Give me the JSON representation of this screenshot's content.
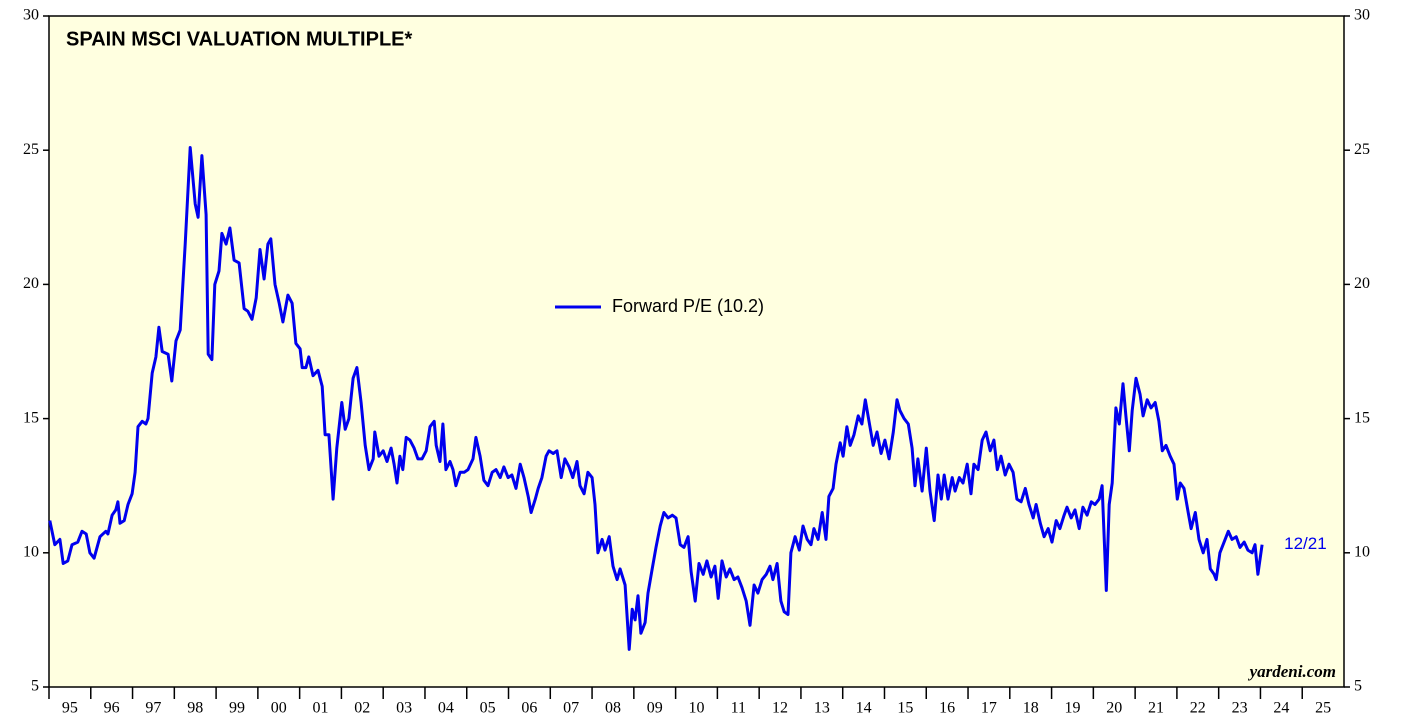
{
  "chart_data": {
    "type": "line",
    "title": "SPAIN MSCI VALUATION MULTIPLE*",
    "annotations": [
      "12/21",
      "yardeni.com"
    ],
    "xlim": [
      1995,
      2026
    ],
    "xticks": [
      {
        "value": 1995,
        "label": "95"
      },
      {
        "value": 1996,
        "label": "96"
      },
      {
        "value": 1997,
        "label": "97"
      },
      {
        "value": 1998,
        "label": "98"
      },
      {
        "value": 1999,
        "label": "99"
      },
      {
        "value": 2000,
        "label": "00"
      },
      {
        "value": 2001,
        "label": "01"
      },
      {
        "value": 2002,
        "label": "02"
      },
      {
        "value": 2003,
        "label": "03"
      },
      {
        "value": 2004,
        "label": "04"
      },
      {
        "value": 2005,
        "label": "05"
      },
      {
        "value": 2006,
        "label": "06"
      },
      {
        "value": 2007,
        "label": "07"
      },
      {
        "value": 2008,
        "label": "08"
      },
      {
        "value": 2009,
        "label": "09"
      },
      {
        "value": 2010,
        "label": "10"
      },
      {
        "value": 2011,
        "label": "11"
      },
      {
        "value": 2012,
        "label": "12"
      },
      {
        "value": 2013,
        "label": "13"
      },
      {
        "value": 2014,
        "label": "14"
      },
      {
        "value": 2015,
        "label": "15"
      },
      {
        "value": 2016,
        "label": "16"
      },
      {
        "value": 2017,
        "label": "17"
      },
      {
        "value": 2018,
        "label": "18"
      },
      {
        "value": 2019,
        "label": "19"
      },
      {
        "value": 2020,
        "label": "20"
      },
      {
        "value": 2021,
        "label": "21"
      },
      {
        "value": 2022,
        "label": "22"
      },
      {
        "value": 2023,
        "label": "23"
      },
      {
        "value": 2024,
        "label": "24"
      },
      {
        "value": 2025,
        "label": "25"
      }
    ],
    "ylim": [
      5,
      30
    ],
    "yticks": [
      5,
      10,
      15,
      20,
      25,
      30
    ],
    "legend": "center",
    "x": [
      1995.02,
      1995.14,
      1995.26,
      1995.34,
      1995.45,
      1995.55,
      1995.69,
      1995.79,
      1995.89,
      1995.98,
      1996.08,
      1996.22,
      1996.36,
      1996.41,
      1996.51,
      1996.6,
      1996.65,
      1996.7,
      1996.8,
      1996.89,
      1996.99,
      1997.06,
      1997.13,
      1997.23,
      1997.32,
      1997.37,
      1997.47,
      1997.56,
      1997.63,
      1997.71,
      1997.85,
      1997.94,
      1998.04,
      1998.14,
      1998.26,
      1998.38,
      1998.5,
      1998.57,
      1998.66,
      1998.76,
      1998.81,
      1998.9,
      1998.97,
      1999.07,
      1999.14,
      1999.24,
      1999.33,
      1999.43,
      1999.55,
      1999.67,
      1999.76,
      1999.86,
      1999.96,
      2000.05,
      2000.15,
      2000.24,
      2000.31,
      2000.41,
      2000.51,
      2000.6,
      2000.72,
      2000.82,
      2000.91,
      2001.01,
      2001.06,
      2001.15,
      2001.22,
      2001.32,
      2001.44,
      2001.54,
      2001.61,
      2001.7,
      2001.8,
      2001.89,
      2002.01,
      2002.09,
      2002.18,
      2002.28,
      2002.37,
      2002.47,
      2002.57,
      2002.66,
      2002.76,
      2002.8,
      2002.9,
      2003.0,
      2003.09,
      2003.19,
      2003.26,
      2003.33,
      2003.4,
      2003.47,
      2003.55,
      2003.64,
      2003.74,
      2003.83,
      2003.93,
      2004.03,
      2004.12,
      2004.22,
      2004.27,
      2004.36,
      2004.43,
      2004.5,
      2004.6,
      2004.67,
      2004.74,
      2004.84,
      2004.94,
      2005.03,
      2005.15,
      2005.22,
      2005.32,
      2005.41,
      2005.51,
      2005.61,
      2005.7,
      2005.8,
      2005.89,
      2005.99,
      2006.08,
      2006.18,
      2006.28,
      2006.37,
      2006.47,
      2006.54,
      2006.64,
      2006.71,
      2006.8,
      2006.9,
      2006.97,
      2007.07,
      2007.16,
      2007.26,
      2007.35,
      2007.45,
      2007.54,
      2007.64,
      2007.71,
      2007.81,
      2007.9,
      2008.0,
      2008.07,
      2008.14,
      2008.24,
      2008.31,
      2008.41,
      2008.5,
      2008.6,
      2008.67,
      2008.79,
      2008.89,
      2008.96,
      2009.03,
      2009.1,
      2009.17,
      2009.27,
      2009.34,
      2009.44,
      2009.53,
      2009.63,
      2009.72,
      2009.82,
      2009.92,
      2010.01,
      2010.11,
      2010.2,
      2010.3,
      2010.37,
      2010.47,
      2010.56,
      2010.66,
      2010.75,
      2010.85,
      2010.94,
      2011.02,
      2011.11,
      2011.21,
      2011.3,
      2011.4,
      2011.49,
      2011.59,
      2011.69,
      2011.78,
      2011.88,
      2011.97,
      2012.07,
      2012.17,
      2012.26,
      2012.33,
      2012.43,
      2012.52,
      2012.6,
      2012.69,
      2012.76,
      2012.86,
      2012.96,
      2013.05,
      2013.15,
      2013.24,
      2013.31,
      2013.41,
      2013.51,
      2013.6,
      2013.67,
      2013.77,
      2013.84,
      2013.94,
      2014.01,
      2014.1,
      2014.18,
      2014.27,
      2014.37,
      2014.46,
      2014.54,
      2014.63,
      2014.73,
      2014.82,
      2014.92,
      2015.01,
      2015.11,
      2015.21,
      2015.3,
      2015.37,
      2015.47,
      2015.57,
      2015.66,
      2015.73,
      2015.8,
      2015.9,
      2016.0,
      2016.09,
      2016.19,
      2016.28,
      2016.36,
      2016.43,
      2016.52,
      2016.62,
      2016.69,
      2016.79,
      2016.88,
      2016.98,
      2017.07,
      2017.14,
      2017.24,
      2017.34,
      2017.43,
      2017.53,
      2017.62,
      2017.7,
      2017.79,
      2017.89,
      2017.98,
      2018.08,
      2018.17,
      2018.27,
      2018.37,
      2018.46,
      2018.56,
      2018.63,
      2018.73,
      2018.82,
      2018.92,
      2019.01,
      2019.11,
      2019.2,
      2019.3,
      2019.37,
      2019.47,
      2019.56,
      2019.66,
      2019.75,
      2019.85,
      2019.95,
      2020.04,
      2020.14,
      2020.21,
      2020.31,
      2020.38,
      2020.45,
      2020.54,
      2020.62,
      2020.71,
      2020.78,
      2020.86,
      2020.93,
      2021.02,
      2021.12,
      2021.19,
      2021.29,
      2021.38,
      2021.48,
      2021.57,
      2021.65,
      2021.74,
      2021.84,
      2021.93,
      2022.01,
      2022.08,
      2022.17,
      2022.27,
      2022.34,
      2022.44,
      2022.53,
      2022.63,
      2022.72,
      2022.8,
      2022.89,
      2022.94,
      2023.03,
      2023.13,
      2023.23,
      2023.32,
      2023.42,
      2023.51,
      2023.61,
      2023.7,
      2023.8,
      2023.87,
      2023.94,
      2024.04
    ],
    "series": [
      {
        "name": "Forward P/E (10.2)",
        "color": "#0000ee",
        "values": [
          11.2,
          10.3,
          10.5,
          9.6,
          9.7,
          10.3,
          10.4,
          10.8,
          10.7,
          10.0,
          9.8,
          10.6,
          10.8,
          10.7,
          11.4,
          11.6,
          11.9,
          11.1,
          11.2,
          11.8,
          12.2,
          13.0,
          14.7,
          14.9,
          14.8,
          15.0,
          16.7,
          17.3,
          18.4,
          17.5,
          17.4,
          16.4,
          17.9,
          18.3,
          21.5,
          25.1,
          23.0,
          22.5,
          24.8,
          22.6,
          17.4,
          17.2,
          20.0,
          20.5,
          21.9,
          21.5,
          22.1,
          20.9,
          20.8,
          19.1,
          19.0,
          18.7,
          19.5,
          21.3,
          20.2,
          21.5,
          21.7,
          20.0,
          19.3,
          18.6,
          19.6,
          19.3,
          17.8,
          17.6,
          16.9,
          16.9,
          17.3,
          16.6,
          16.8,
          16.2,
          14.4,
          14.4,
          12.0,
          13.9,
          15.6,
          14.6,
          15.0,
          16.5,
          16.9,
          15.6,
          14.0,
          13.1,
          13.5,
          14.5,
          13.6,
          13.8,
          13.4,
          13.9,
          13.3,
          12.6,
          13.6,
          13.1,
          14.3,
          14.2,
          13.9,
          13.5,
          13.5,
          13.8,
          14.7,
          14.9,
          14.0,
          13.4,
          14.8,
          13.1,
          13.4,
          13.1,
          12.5,
          13.0,
          13.0,
          13.1,
          13.5,
          14.3,
          13.6,
          12.7,
          12.5,
          13.0,
          13.1,
          12.8,
          13.2,
          12.8,
          12.9,
          12.4,
          13.3,
          12.8,
          12.1,
          11.5,
          12.0,
          12.4,
          12.8,
          13.6,
          13.8,
          13.7,
          13.8,
          12.8,
          13.5,
          13.2,
          12.8,
          13.4,
          12.5,
          12.2,
          13.0,
          12.8,
          11.8,
          10.0,
          10.5,
          10.1,
          10.6,
          9.5,
          9.0,
          9.4,
          8.8,
          6.4,
          7.9,
          7.5,
          8.4,
          7.0,
          7.4,
          8.5,
          9.4,
          10.2,
          11.0,
          11.5,
          11.3,
          11.4,
          11.3,
          10.3,
          10.2,
          10.6,
          9.3,
          8.2,
          9.6,
          9.2,
          9.7,
          9.1,
          9.5,
          8.3,
          9.7,
          9.1,
          9.4,
          9.0,
          9.1,
          8.7,
          8.2,
          7.3,
          8.8,
          8.5,
          9.0,
          9.2,
          9.5,
          9.0,
          9.6,
          8.2,
          7.8,
          7.7,
          10.0,
          10.6,
          10.1,
          11.0,
          10.5,
          10.3,
          10.9,
          10.5,
          11.5,
          10.5,
          12.1,
          12.4,
          13.3,
          14.1,
          13.6,
          14.7,
          14.0,
          14.4,
          15.1,
          14.8,
          15.7,
          14.9,
          14.0,
          14.5,
          13.7,
          14.2,
          13.5,
          14.5,
          15.7,
          15.3,
          15.0,
          14.8,
          13.9,
          12.5,
          13.5,
          12.3,
          13.9,
          12.3,
          11.2,
          12.9,
          12.0,
          12.9,
          12.0,
          12.8,
          12.3,
          12.8,
          12.6,
          13.3,
          12.2,
          13.3,
          13.1,
          14.2,
          14.5,
          13.8,
          14.2,
          13.1,
          13.6,
          12.9,
          13.3,
          13.0,
          12.0,
          11.9,
          12.4,
          11.8,
          11.3,
          11.8,
          11.1,
          10.6,
          10.9,
          10.4,
          11.2,
          10.9,
          11.4,
          11.7,
          11.3,
          11.6,
          10.9,
          11.7,
          11.4,
          11.9,
          11.8,
          12.0,
          12.5,
          8.6,
          11.8,
          12.6,
          15.4,
          14.8,
          16.3,
          15.1,
          13.8,
          15.3,
          16.5,
          15.9,
          15.1,
          15.7,
          15.4,
          15.6,
          14.9,
          13.8,
          14.0,
          13.6,
          13.3,
          12.0,
          12.6,
          12.4,
          11.5,
          10.9,
          11.5,
          10.5,
          10.0,
          10.5,
          9.4,
          9.2,
          9.0,
          10.0,
          10.4,
          10.8,
          10.5,
          10.6,
          10.2,
          10.4,
          10.1,
          10.0,
          10.3,
          9.2,
          10.3
        ]
      }
    ]
  }
}
